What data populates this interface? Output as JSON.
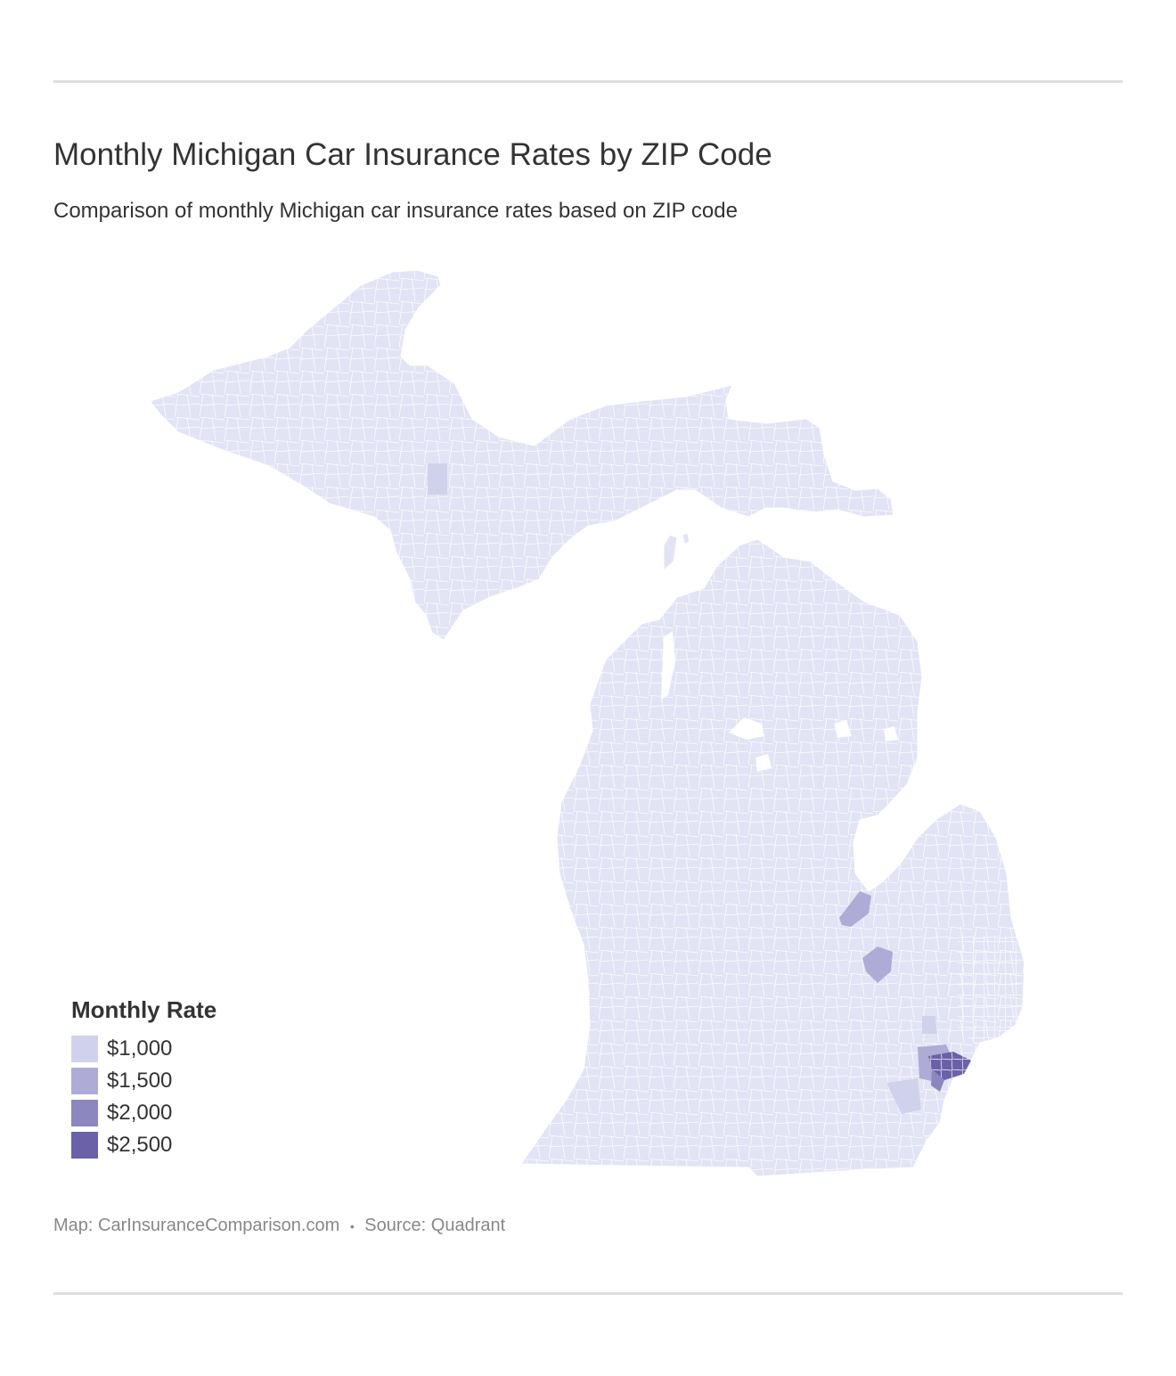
{
  "header": {
    "title": "Monthly Michigan Car Insurance Rates by ZIP Code",
    "subtitle": "Comparison of monthly Michigan car insurance rates based on ZIP code"
  },
  "legend": {
    "title": "Monthly Rate",
    "items": [
      {
        "label": "$1,000",
        "color": "#d0d2ec"
      },
      {
        "label": "$1,500",
        "color": "#aeacd6"
      },
      {
        "label": "$2,000",
        "color": "#8c87bf"
      },
      {
        "label": "$2,500",
        "color": "#6a61a8"
      }
    ]
  },
  "map": {
    "region": "Michigan",
    "base_color": "#e2e4f5",
    "border_color": "#ffffff"
  },
  "footer": {
    "map_credit": "Map: CarInsuranceComparison.com",
    "separator": "•",
    "source": "Source: Quadrant"
  }
}
